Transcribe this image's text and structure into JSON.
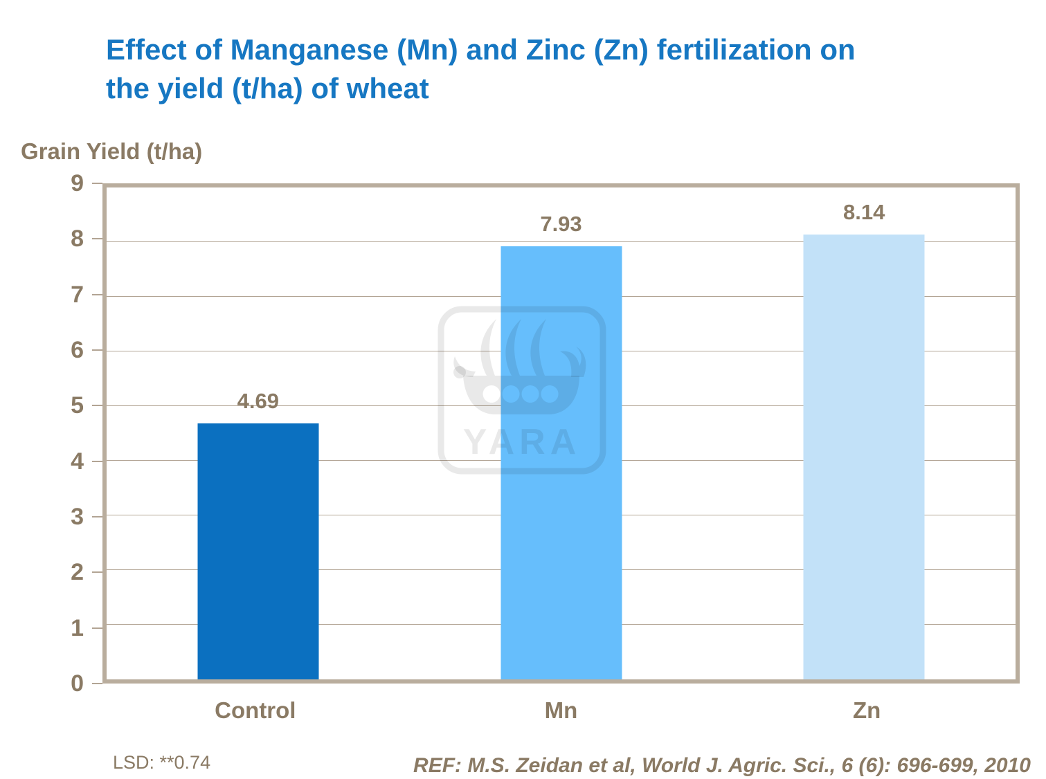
{
  "slide": {
    "title_line1": "Effect of Manganese (Mn) and Zinc (Zn) fertilization on",
    "title_line2": "the yield (t/ha) of wheat",
    "title_color": "#1677C2",
    "text_color": "#8A7A64",
    "footnote_lsd": "LSD: **0.74",
    "reference": "REF: M.S. Zeidan et al, World J. Agric. Sci., 6 (6): 696-699, 2010",
    "watermark_text": "YARA"
  },
  "chart_data": {
    "type": "bar",
    "title": "Effect of Manganese (Mn) and Zinc (Zn) fertilization on the yield (t/ha) of wheat",
    "ylabel": "Grain Yield (t/ha)",
    "xlabel": "",
    "categories": [
      "Control",
      "Mn",
      "Zn"
    ],
    "values": [
      4.69,
      7.93,
      8.14
    ],
    "value_labels": [
      "4.69",
      "7.93",
      "8.14"
    ],
    "bar_colors": [
      "#0B70C0",
      "#66BEFC",
      "#C2E1F8"
    ],
    "ylim": [
      0,
      9
    ],
    "y_ticks": [
      0,
      1,
      2,
      3,
      4,
      5,
      6,
      7,
      8,
      9
    ],
    "grid": true,
    "gridline_color": "#B2A494",
    "plot_border_color": "#B9AD9D",
    "legend": false
  }
}
